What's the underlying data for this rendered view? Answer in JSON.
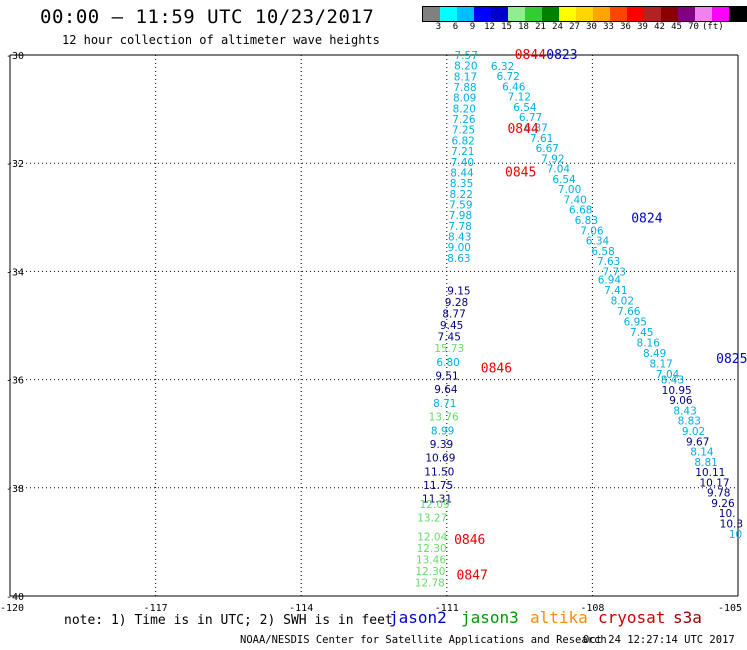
{
  "header": {
    "title": "00:00 – 11:59 UTC 10/23/2017",
    "subtitle": "12 hour collection of altimeter wave heights"
  },
  "colorbar": {
    "colors": [
      "#808080",
      "#00ffff",
      "#00bfff",
      "#0000ff",
      "#0000cd",
      "#90ee90",
      "#32cd32",
      "#008000",
      "#ffff00",
      "#ffd700",
      "#ffa500",
      "#ff4500",
      "#ff0000",
      "#b22222",
      "#8b0000",
      "#800080",
      "#ee82ee",
      "#ff00ff",
      "#000000"
    ],
    "labels": [
      "3",
      "6",
      "9",
      "12",
      "15",
      "18",
      "21",
      "24",
      "27",
      "30",
      "33",
      "36",
      "39",
      "42",
      "45",
      "70",
      "(ft)"
    ]
  },
  "axes": {
    "x_ticks": [
      "-120",
      "-117",
      "-114",
      "-111",
      "-108",
      "-105"
    ],
    "y_ticks": [
      "-30",
      "-32",
      "-34",
      "-36",
      "-38",
      "-40"
    ]
  },
  "note": "note: 1) Time is in UTC; 2) SWH is in feet",
  "satellites": [
    {
      "name": "jason2",
      "color": "#0000cc"
    },
    {
      "name": "jason3",
      "color": "#009900"
    },
    {
      "name": "altika",
      "color": "#ff8c00"
    },
    {
      "name": "cryosat",
      "color": "#cc0000"
    },
    {
      "name": "s3a",
      "color": "#990000"
    }
  ],
  "footer": {
    "credit": "NOAA/NESDIS Center for Satellite Applications and Research",
    "timestamp": "Oct 24 12:27:14 UTC 2017"
  },
  "chart_data": {
    "type": "scatter",
    "title": "00:00 – 11:59 UTC 10/23/2017",
    "xlim": [
      -120,
      -105
    ],
    "ylim": [
      -40,
      -30
    ],
    "grid": true,
    "colors": {
      "cyan": "#00b0e0",
      "navy": "#000080",
      "green": "#66dd66",
      "red": "#ee0000",
      "blue": "#0000cc"
    },
    "tracks": [
      {
        "name": "left-track-top",
        "style": "cyan",
        "x_start": -110.6,
        "x_end": -110.75,
        "y_start": -30.0,
        "y_end": -33.75,
        "values": [
          "7.57",
          "8.20",
          "8.17",
          "7.88",
          "8.09",
          "8.20",
          "7.26",
          "7.25",
          "6.82",
          "7.21",
          "7.40",
          "8.44",
          "8.35",
          "8.22",
          "7.59",
          "7.98",
          "7.78",
          "8.43",
          "9.00",
          "8.63"
        ]
      },
      {
        "name": "left-track-middle",
        "style": "navy",
        "x_start": -110.75,
        "x_end": -110.95,
        "y_start": -34.35,
        "y_end": -35.2,
        "values": [
          "9.15",
          "9.28",
          "8.77",
          "9.45",
          "7.45"
        ]
      },
      {
        "name": "left-track-lower",
        "style": "mixed",
        "x_start": -110.95,
        "x_end": -111.2,
        "y_start": -35.42,
        "y_end": -38.2,
        "values": [
          "15.73",
          "6.80",
          "9.51",
          "9.64",
          "8.71",
          "13.76",
          "8.99",
          "9.39",
          "10.69",
          "11.50",
          "11.75",
          "11.31"
        ],
        "styles": [
          "green",
          "cyan",
          "navy",
          "navy",
          "cyan",
          "green",
          "cyan",
          "navy",
          "navy",
          "navy",
          "navy",
          "navy"
        ]
      },
      {
        "name": "left-track-bottom",
        "style": "green",
        "x_start": -111.25,
        "x_end": -111.3,
        "y_start": -38.3,
        "y_end": -38.55,
        "values": [
          "12.09",
          "13.27"
        ]
      },
      {
        "name": "left-track-end",
        "style": "green",
        "x_start": -111.3,
        "x_end": -111.35,
        "y_start": -38.9,
        "y_end": -39.75,
        "values": [
          "12.04",
          "12.30",
          "13.46",
          "12.30",
          "12.78"
        ]
      },
      {
        "name": "right-track-top",
        "style": "cyan",
        "x_start": -109.85,
        "x_end": -107.55,
        "y_start": -30.2,
        "y_end": -34.0,
        "values": [
          "6.32",
          "6.72",
          "6.46",
          "7.12",
          "6.54",
          "6.77",
          "6.87",
          "7.61",
          "6.67",
          "7.92",
          "7.04",
          "6.54",
          "7.00",
          "7.40",
          "6.68",
          "6.83",
          "7.06",
          "6.34",
          "6.58",
          "7.63",
          "7.73"
        ]
      },
      {
        "name": "right-track-middle",
        "style": "cyan",
        "x_start": -107.65,
        "x_end": -106.45,
        "y_start": -34.15,
        "y_end": -35.9,
        "values": [
          "6.94",
          "7.41",
          "8.02",
          "7.66",
          "6.95",
          "7.45",
          "8.16",
          "8.49",
          "8.17",
          "7.04"
        ]
      },
      {
        "name": "right-track-lower",
        "style": "mixed",
        "x_start": -106.35,
        "x_end": -105.05,
        "y_start": -36.0,
        "y_end": -38.85,
        "values": [
          "8.43",
          "10.95",
          "9.06",
          "8.43",
          "8.83",
          "9.02",
          "9.67",
          "8.14",
          "8.81",
          "10.11",
          "10.17",
          "9.78",
          "9.26",
          "10.",
          "10.3",
          "10"
        ],
        "styles": [
          "cyan",
          "navy",
          "navy",
          "cyan",
          "cyan",
          "cyan",
          "navy",
          "cyan",
          "cyan",
          "navy",
          "navy",
          "navy",
          "navy",
          "navy",
          "navy",
          "cyan"
        ]
      }
    ],
    "time_labels": [
      {
        "text": "0844",
        "x": -109.6,
        "y": -29.98,
        "color": "red"
      },
      {
        "text": "0823",
        "x": -108.95,
        "y": -29.98,
        "color": "blue"
      },
      {
        "text": "0844",
        "x": -109.75,
        "y": -31.35,
        "color": "red"
      },
      {
        "text": "0845",
        "x": -109.8,
        "y": -32.15,
        "color": "red"
      },
      {
        "text": "0824",
        "x": -107.2,
        "y": -33.0,
        "color": "blue"
      },
      {
        "text": "0825",
        "x": -105.45,
        "y": -35.6,
        "color": "blue"
      },
      {
        "text": "0846",
        "x": -110.3,
        "y": -35.78,
        "color": "red"
      },
      {
        "text": "0846",
        "x": -110.85,
        "y": -38.95,
        "color": "red"
      },
      {
        "text": "0847",
        "x": -110.8,
        "y": -39.6,
        "color": "red"
      }
    ]
  }
}
